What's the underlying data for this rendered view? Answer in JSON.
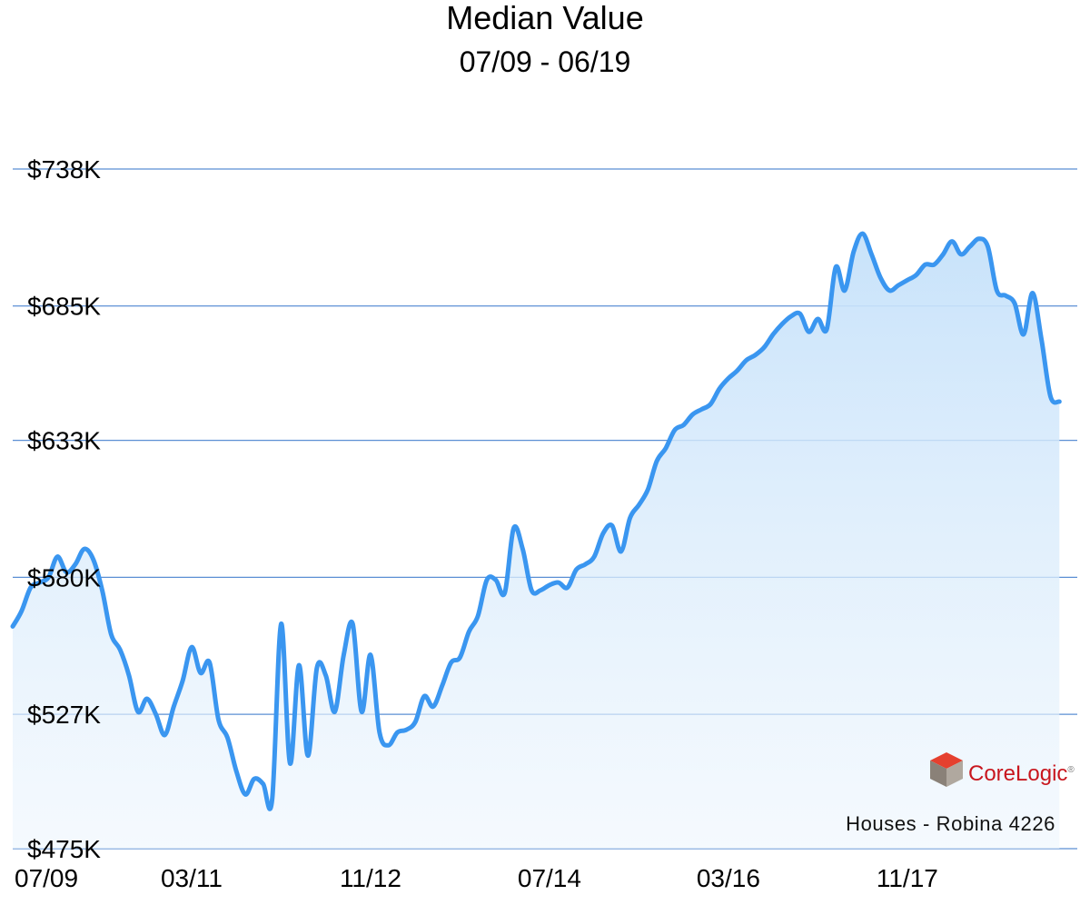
{
  "chart_data": {
    "type": "area",
    "title": "Median Value",
    "subtitle": "07/09 - 06/19",
    "y_ticks": [
      "$475K",
      "$527K",
      "$580K",
      "$633K",
      "$685K",
      "$738K"
    ],
    "y_tick_values": [
      475,
      527,
      580,
      633,
      685,
      738
    ],
    "ylim": [
      475,
      738
    ],
    "x_ticks": [
      {
        "label": "07/09",
        "t": 0
      },
      {
        "label": "03/11",
        "t": 20
      },
      {
        "label": "11/12",
        "t": 40
      },
      {
        "label": "07/14",
        "t": 60
      },
      {
        "label": "03/16",
        "t": 80
      },
      {
        "label": "11/17",
        "t": 100
      }
    ],
    "xlim": [
      0,
      119
    ],
    "grid": true,
    "line_color": "#3a96f0",
    "fill_color": "#cfe6fb",
    "series": [
      {
        "points": [
          [
            0,
            561
          ],
          [
            1,
            567
          ],
          [
            2,
            576
          ],
          [
            3,
            578
          ],
          [
            4,
            580
          ],
          [
            5,
            588
          ],
          [
            6,
            582
          ],
          [
            7,
            585
          ],
          [
            8,
            591
          ],
          [
            9,
            587
          ],
          [
            10,
            575
          ],
          [
            11,
            558
          ],
          [
            12,
            552
          ],
          [
            13,
            542
          ],
          [
            14,
            528
          ],
          [
            15,
            533
          ],
          [
            16,
            527
          ],
          [
            17,
            519
          ],
          [
            18,
            530
          ],
          [
            19,
            540
          ],
          [
            20,
            553
          ],
          [
            21,
            543
          ],
          [
            22,
            547
          ],
          [
            23,
            525
          ],
          [
            24,
            518
          ],
          [
            25,
            505
          ],
          [
            26,
            496
          ],
          [
            27,
            502
          ],
          [
            28,
            500
          ],
          [
            29,
            494
          ],
          [
            30,
            562
          ],
          [
            31,
            508
          ],
          [
            32,
            546
          ],
          [
            33,
            511
          ],
          [
            34,
            545
          ],
          [
            35,
            542
          ],
          [
            36,
            528
          ],
          [
            37,
            550
          ],
          [
            38,
            562
          ],
          [
            39,
            528
          ],
          [
            40,
            550
          ],
          [
            41,
            520
          ],
          [
            42,
            515
          ],
          [
            43,
            520
          ],
          [
            44,
            521
          ],
          [
            45,
            524
          ],
          [
            46,
            534
          ],
          [
            47,
            530
          ],
          [
            48,
            538
          ],
          [
            49,
            547
          ],
          [
            50,
            549
          ],
          [
            51,
            559
          ],
          [
            52,
            565
          ],
          [
            53,
            579
          ],
          [
            54,
            579
          ],
          [
            55,
            574
          ],
          [
            56,
            599
          ],
          [
            57,
            591
          ],
          [
            58,
            575
          ],
          [
            59,
            575
          ],
          [
            60,
            577
          ],
          [
            61,
            578
          ],
          [
            62,
            576
          ],
          [
            63,
            583
          ],
          [
            64,
            585
          ],
          [
            65,
            588
          ],
          [
            66,
            597
          ],
          [
            67,
            600
          ],
          [
            68,
            590
          ],
          [
            69,
            603
          ],
          [
            70,
            608
          ],
          [
            71,
            614
          ],
          [
            72,
            625
          ],
          [
            73,
            630
          ],
          [
            74,
            637
          ],
          [
            75,
            639
          ],
          [
            76,
            643
          ],
          [
            77,
            645
          ],
          [
            78,
            647
          ],
          [
            79,
            653
          ],
          [
            80,
            657
          ],
          [
            81,
            660
          ],
          [
            82,
            664
          ],
          [
            83,
            666
          ],
          [
            84,
            669
          ],
          [
            85,
            674
          ],
          [
            86,
            678
          ],
          [
            87,
            681
          ],
          [
            88,
            682
          ],
          [
            89,
            675
          ],
          [
            90,
            680
          ],
          [
            91,
            676
          ],
          [
            92,
            700
          ],
          [
            93,
            691
          ],
          [
            94,
            706
          ],
          [
            95,
            713
          ],
          [
            96,
            705
          ],
          [
            97,
            696
          ],
          [
            98,
            691
          ],
          [
            99,
            693
          ],
          [
            100,
            695
          ],
          [
            101,
            697
          ],
          [
            102,
            701
          ],
          [
            103,
            701
          ],
          [
            104,
            705
          ],
          [
            105,
            710
          ],
          [
            106,
            705
          ],
          [
            107,
            708
          ],
          [
            108,
            711
          ],
          [
            109,
            708
          ],
          [
            110,
            691
          ],
          [
            111,
            689
          ],
          [
            112,
            686
          ],
          [
            113,
            674
          ],
          [
            114,
            690
          ],
          [
            115,
            672
          ],
          [
            116,
            650
          ],
          [
            117,
            648
          ]
        ]
      }
    ]
  },
  "caption": "Houses - Robina 4226",
  "brand": {
    "text": "CoreLogic",
    "mark": "®",
    "icon": "corelogic-cube-icon",
    "colors": {
      "top": "#e5402f",
      "left": "#8a8178",
      "right": "#b0a89f",
      "text": "#c8161e"
    }
  }
}
